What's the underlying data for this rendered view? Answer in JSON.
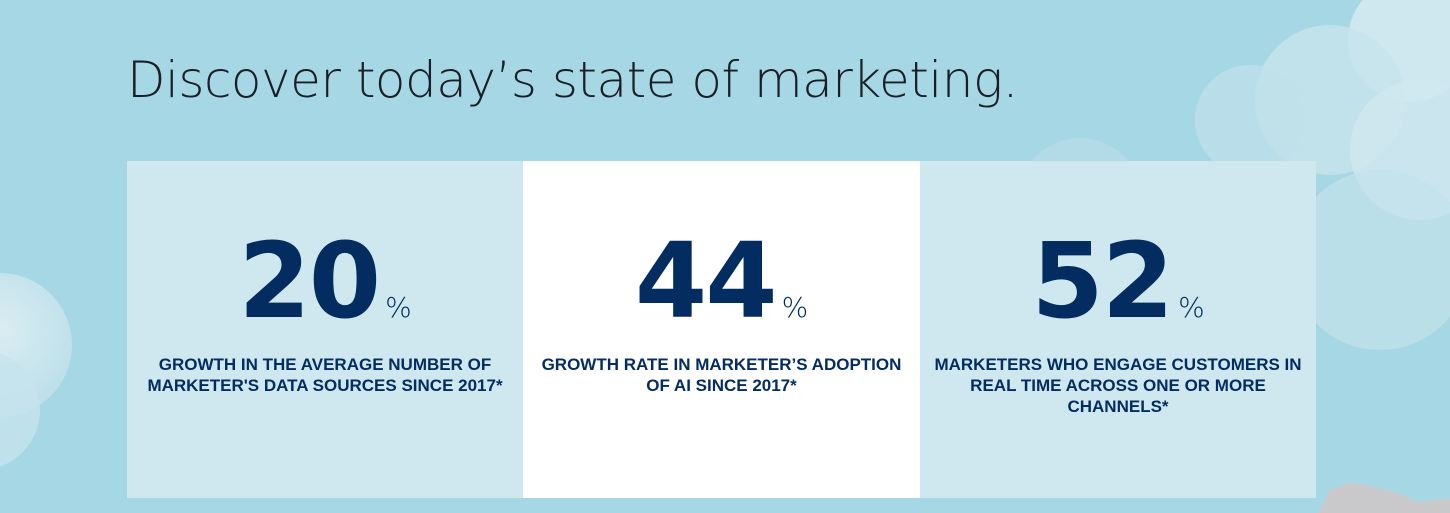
{
  "headline": "Discover today’s state of marketing.",
  "stats": [
    {
      "value": "20",
      "unit": "%",
      "caption_lines": [
        "GROWTH IN THE AVERAGE NUMBER OF",
        "MARKETER'S DATA SOURCES SINCE 2017*"
      ]
    },
    {
      "value": "44",
      "unit": "%",
      "caption_lines": [
        "GROWTH RATE IN MARKETER’S ADOPTION",
        "OF AI SINCE 2017*"
      ]
    },
    {
      "value": "52",
      "unit": "%",
      "caption_lines": [
        "MARKETERS WHO ENGAGE CUSTOMERS IN",
        "REAL TIME ACROSS ONE OR MORE",
        "CHANNELS*"
      ]
    }
  ],
  "colors": {
    "background": "#a6d7e4",
    "card": "#cfe8ef",
    "card_highlight": "#ffffff",
    "stat_text": "#032d60",
    "headline_text": "#1b1e26"
  }
}
